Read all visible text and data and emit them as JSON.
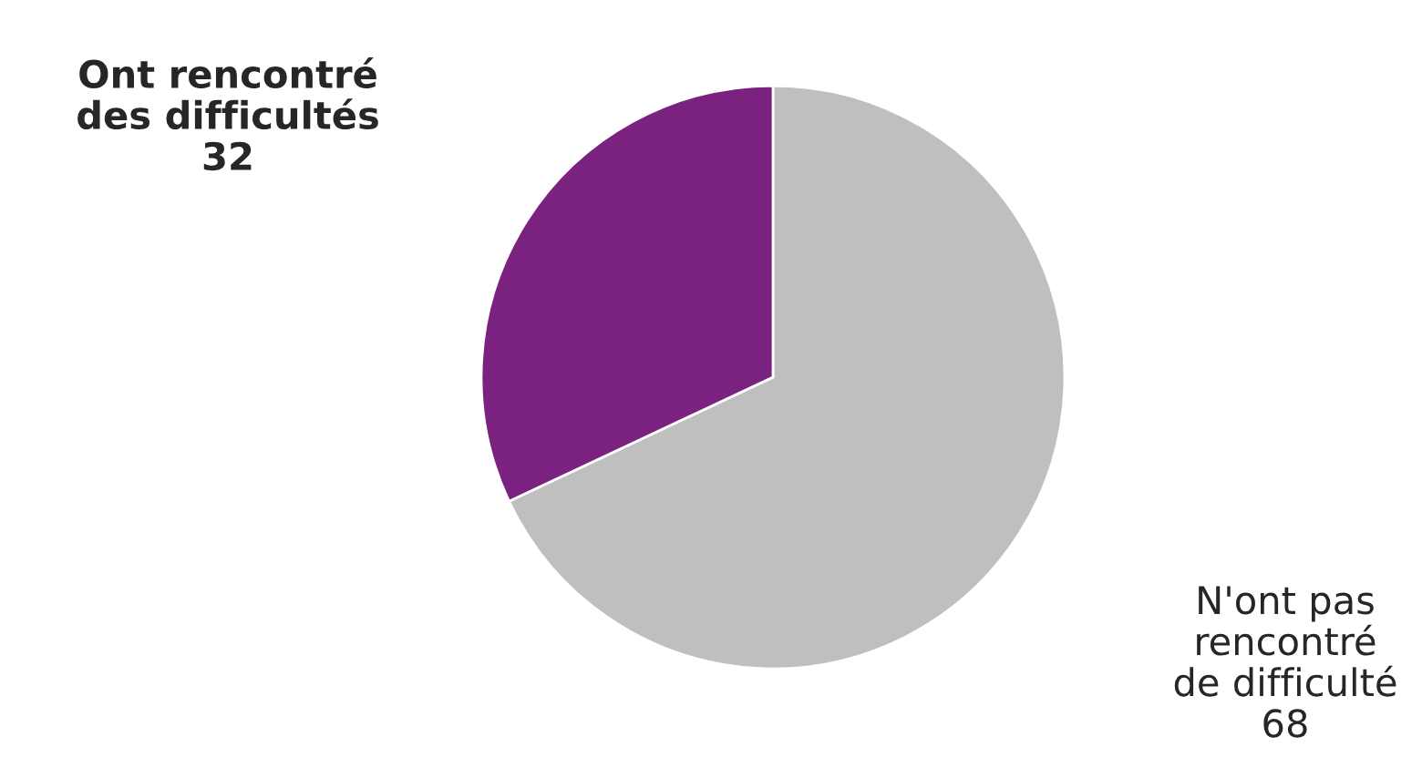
{
  "chart_data": {
    "type": "pie",
    "categories": [
      "N'ont pas\nrencontré\nde difficulté",
      "Ont rencontré\ndes difficultés"
    ],
    "values": [
      68,
      32
    ],
    "colors": [
      "#bfbfbf",
      "#7b2180"
    ],
    "data_labels": true
  }
}
